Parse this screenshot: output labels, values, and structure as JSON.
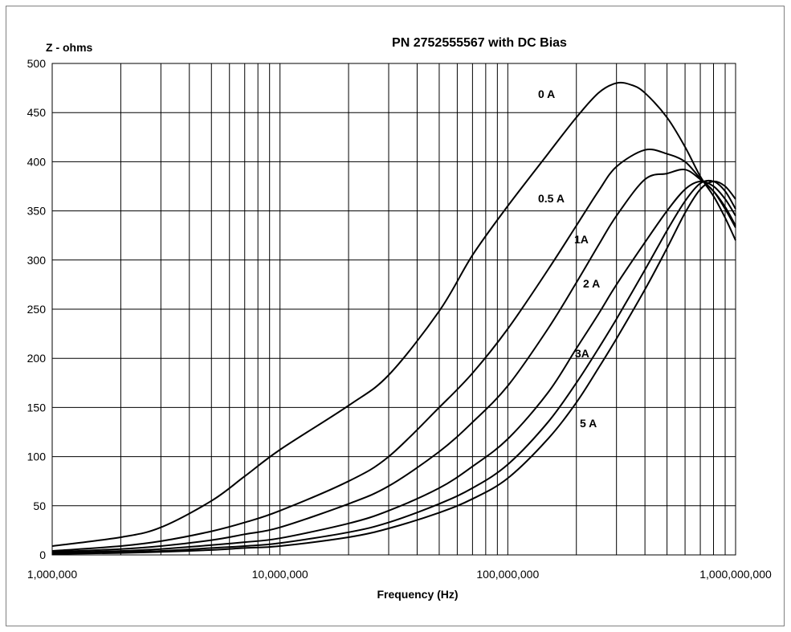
{
  "chart_data": {
    "type": "line",
    "title": "PN 2752555567 with DC Bias",
    "xlabel": "Frequency (Hz)",
    "ylabel": "Z - ohms",
    "x_scale": "log",
    "xlim": [
      1000000,
      1000000000
    ],
    "ylim": [
      0,
      500
    ],
    "grid": true,
    "legend": "none",
    "x_tick_labels": [
      "1,000,000",
      "10,000,000",
      "100,000,000",
      "1,000,000,000"
    ],
    "y_tick_labels": [
      "0",
      "50",
      "100",
      "150",
      "200",
      "250",
      "300",
      "350",
      "400",
      "450",
      "500"
    ],
    "series": [
      {
        "name": "0 A",
        "x": [
          1000000,
          2000000,
          3000000,
          5000000,
          7000000,
          10000000,
          20000000,
          30000000,
          50000000,
          70000000,
          100000000,
          150000000,
          200000000,
          250000000,
          300000000,
          350000000,
          400000000,
          500000000,
          600000000,
          700000000,
          800000000,
          900000000,
          1000000000
        ],
        "y": [
          9,
          18,
          28,
          55,
          80,
          107,
          152,
          183,
          248,
          305,
          355,
          408,
          445,
          470,
          480,
          478,
          470,
          445,
          415,
          385,
          365,
          343,
          320
        ]
      },
      {
        "name": "0.5 A",
        "x": [
          1000000,
          2000000,
          3000000,
          5000000,
          7000000,
          10000000,
          20000000,
          30000000,
          50000000,
          70000000,
          100000000,
          150000000,
          200000000,
          250000000,
          300000000,
          400000000,
          500000000,
          600000000,
          700000000,
          800000000,
          900000000,
          1000000000
        ],
        "y": [
          4,
          9,
          14,
          24,
          33,
          45,
          75,
          100,
          150,
          185,
          230,
          290,
          335,
          370,
          395,
          412,
          408,
          400,
          383,
          370,
          352,
          333
        ]
      },
      {
        "name": "1A",
        "x": [
          1000000,
          2000000,
          3000000,
          5000000,
          7000000,
          10000000,
          20000000,
          30000000,
          50000000,
          70000000,
          100000000,
          150000000,
          200000000,
          250000000,
          300000000,
          400000000,
          500000000,
          600000000,
          700000000,
          800000000,
          900000000,
          1000000000
        ],
        "y": [
          3,
          6,
          9,
          15,
          21,
          28,
          52,
          70,
          105,
          135,
          172,
          230,
          277,
          315,
          345,
          382,
          388,
          392,
          382,
          370,
          354,
          335
        ]
      },
      {
        "name": "2 A",
        "x": [
          1000000,
          2000000,
          3000000,
          5000000,
          7000000,
          10000000,
          20000000,
          30000000,
          50000000,
          70000000,
          100000000,
          150000000,
          200000000,
          250000000,
          300000000,
          400000000,
          500000000,
          600000000,
          700000000,
          800000000,
          900000000,
          1000000000
        ],
        "y": [
          2,
          4,
          6,
          10,
          13,
          17,
          32,
          45,
          68,
          90,
          118,
          165,
          210,
          245,
          275,
          318,
          350,
          372,
          380,
          375,
          362,
          345
        ]
      },
      {
        "name": "3A",
        "x": [
          1000000,
          2000000,
          3000000,
          5000000,
          7000000,
          10000000,
          20000000,
          30000000,
          50000000,
          70000000,
          100000000,
          150000000,
          200000000,
          250000000,
          300000000,
          400000000,
          500000000,
          600000000,
          700000000,
          800000000,
          900000000,
          1000000000
        ],
        "y": [
          1,
          3,
          4,
          7,
          9,
          12,
          23,
          33,
          52,
          68,
          92,
          135,
          175,
          210,
          240,
          290,
          330,
          360,
          378,
          380,
          370,
          352
        ]
      },
      {
        "name": "5 A",
        "x": [
          1000000,
          2000000,
          3000000,
          5000000,
          7000000,
          10000000,
          20000000,
          30000000,
          50000000,
          70000000,
          100000000,
          150000000,
          200000000,
          250000000,
          300000000,
          400000000,
          500000000,
          600000000,
          700000000,
          800000000,
          900000000,
          1000000000
        ],
        "y": [
          1,
          2,
          3,
          5,
          7,
          9,
          18,
          27,
          43,
          57,
          78,
          118,
          155,
          190,
          220,
          270,
          312,
          348,
          372,
          380,
          375,
          362
        ]
      }
    ],
    "series_labels": [
      "0 A",
      "0.5 A",
      "1A",
      "2 A",
      "3A",
      "5 A"
    ]
  }
}
